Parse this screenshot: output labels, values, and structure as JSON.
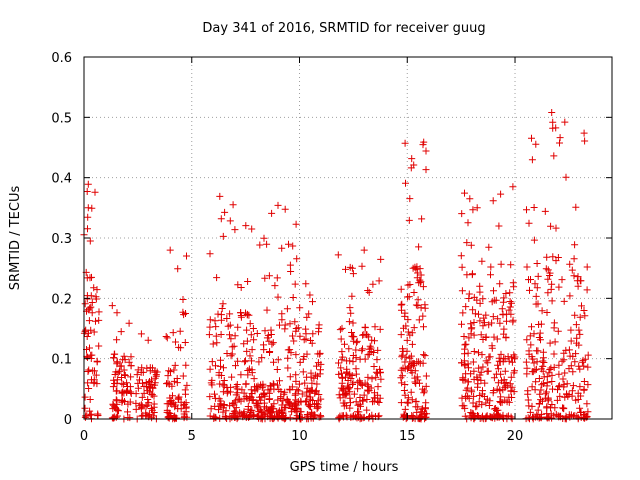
{
  "chart_data": {
    "type": "scatter",
    "title": "Day 341 of 2016, SRMTID for receiver guug",
    "xlabel": "GPS time / hours",
    "ylabel": "SRMTID / TECUs",
    "xlim": [
      0,
      24.5
    ],
    "ylim": [
      0,
      0.6
    ],
    "xticks": [
      0,
      5,
      10,
      15,
      20
    ],
    "xtick_labels": [
      "0",
      "5",
      "10",
      "15",
      "20"
    ],
    "yticks": [
      0,
      0.1,
      0.2,
      0.3,
      0.4,
      0.5,
      0.6
    ],
    "ytick_labels": [
      "0",
      "0.1",
      "0.2",
      "0.3",
      "0.4",
      "0.5",
      "0.6"
    ],
    "grid": true,
    "marker": "+",
    "color": "#e00000",
    "clusters": [
      {
        "x_start": 0.0,
        "x_end": 0.7,
        "n": 70,
        "y_typ": 0.14,
        "y_max": 0.39
      },
      {
        "x_start": 1.3,
        "x_end": 2.2,
        "n": 80,
        "y_typ": 0.06,
        "y_max": 0.19
      },
      {
        "x_start": 2.4,
        "x_end": 3.4,
        "n": 70,
        "y_typ": 0.05,
        "y_max": 0.145
      },
      {
        "x_start": 3.8,
        "x_end": 4.8,
        "n": 75,
        "y_typ": 0.06,
        "y_max": 0.28
      },
      {
        "x_start": 5.8,
        "x_end": 8.8,
        "n": 260,
        "y_typ": 0.06,
        "y_max": 0.37
      },
      {
        "x_start": 8.6,
        "x_end": 11.0,
        "n": 220,
        "y_typ": 0.05,
        "y_max": 0.355
      },
      {
        "x_start": 11.8,
        "x_end": 13.8,
        "n": 180,
        "y_typ": 0.07,
        "y_max": 0.28
      },
      {
        "x_start": 14.7,
        "x_end": 15.9,
        "n": 150,
        "y_typ": 0.12,
        "y_max": 0.46
      },
      {
        "x_start": 17.5,
        "x_end": 20.0,
        "n": 260,
        "y_typ": 0.11,
        "y_max": 0.385
      },
      {
        "x_start": 20.5,
        "x_end": 23.4,
        "n": 260,
        "y_typ": 0.11,
        "y_max": 0.51
      }
    ],
    "notable_points": [
      {
        "x": 21.7,
        "y": 0.508
      },
      {
        "x": 21.75,
        "y": 0.492
      },
      {
        "x": 14.9,
        "y": 0.457
      },
      {
        "x": 21.8,
        "y": 0.436
      },
      {
        "x": 15.3,
        "y": 0.421
      },
      {
        "x": 0.2,
        "y": 0.389
      },
      {
        "x": 0.15,
        "y": 0.377
      },
      {
        "x": 19.9,
        "y": 0.385
      },
      {
        "x": 6.3,
        "y": 0.369
      },
      {
        "x": 9.0,
        "y": 0.354
      },
      {
        "x": 17.9,
        "y": 0.365
      },
      {
        "x": 0.2,
        "y": 0.35
      },
      {
        "x": 4.0,
        "y": 0.28
      },
      {
        "x": 13.0,
        "y": 0.28
      },
      {
        "x": 11.8,
        "y": 0.272
      }
    ]
  }
}
